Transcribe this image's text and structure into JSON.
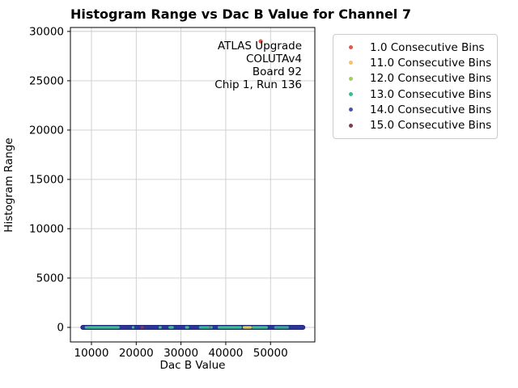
{
  "chart_data": {
    "type": "scatter",
    "title": "Histogram Range vs Dac B Value for Channel 7",
    "xlabel": "Dac B Value",
    "ylabel": "Histogram Range",
    "xlim": [
      5300,
      59900
    ],
    "ylim": [
      -1475,
      30400
    ],
    "xticks": [
      10000,
      20000,
      30000,
      40000,
      50000
    ],
    "yticks": [
      0,
      5000,
      10000,
      15000,
      20000,
      25000,
      30000
    ],
    "grid": true,
    "grid_color": "#cccccc",
    "legend": {
      "position": "upper right",
      "entries": [
        {
          "label": "1.0 Consecutive Bins",
          "color": "#e4574f"
        },
        {
          "label": "11.0 Consecutive Bins",
          "color": "#fdc05e"
        },
        {
          "label": "12.0 Consecutive Bins",
          "color": "#a2ce5a"
        },
        {
          "label": "13.0 Consecutive Bins",
          "color": "#3dbd8a"
        },
        {
          "label": "14.0 Consecutive Bins",
          "color": "#4558a5"
        },
        {
          "label": "15.0 Consecutive Bins",
          "color": "#7d3c5c"
        }
      ]
    },
    "annotation": {
      "lines": [
        "ATLAS Upgrade",
        "COLUTAv4",
        "Board 92",
        "Chip 1, Run 136"
      ]
    },
    "series": [
      {
        "name": "1.0 Consecutive Bins",
        "color": "#e4574f",
        "points": [
          {
            "x": 47800,
            "y": 29000
          }
        ]
      }
    ],
    "near_zero_band": {
      "comment_visible_as": "dense overlapping scatter points at Histogram Range ~0",
      "y": 0,
      "x_start": 7600,
      "x_end": 57700,
      "base_color": "#2b3698",
      "edge_color": "#1a2270",
      "segments": [
        {
          "x_start": 8500,
          "x_end": 16300,
          "color": "#3dbd8a"
        },
        {
          "x_start": 19000,
          "x_end": 19600,
          "color": "#3dbd8a"
        },
        {
          "x_start": 21000,
          "x_end": 21700,
          "color": "#8a3b52"
        },
        {
          "x_start": 25000,
          "x_end": 25700,
          "color": "#3dbd8a"
        },
        {
          "x_start": 27200,
          "x_end": 28400,
          "color": "#3dbd8a"
        },
        {
          "x_start": 30900,
          "x_end": 31800,
          "color": "#3dbd8a"
        },
        {
          "x_start": 34000,
          "x_end": 37100,
          "color": "#35b58d"
        },
        {
          "x_start": 36300,
          "x_end": 36600,
          "color": "#c04a48"
        },
        {
          "x_start": 38200,
          "x_end": 43600,
          "color": "#3dbd8a"
        },
        {
          "x_start": 43800,
          "x_end": 45800,
          "color": "#d6cf4e"
        },
        {
          "x_start": 45800,
          "x_end": 49400,
          "color": "#3dbd8a"
        },
        {
          "x_start": 50800,
          "x_end": 54100,
          "color": "#35a98c"
        }
      ]
    }
  }
}
